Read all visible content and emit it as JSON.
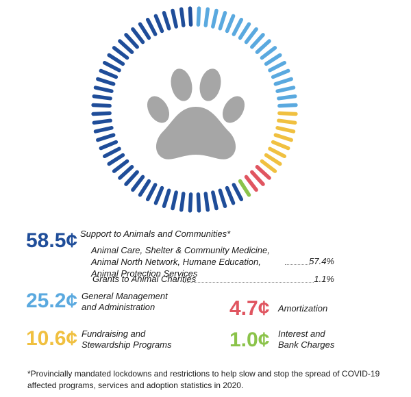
{
  "chart_data": {
    "type": "pie",
    "unit": "¢",
    "segments": [
      {
        "value": "58.5¢",
        "amount": 58.5,
        "label": "Support to Animals and Communities*",
        "color": "#1f4d99"
      },
      {
        "value": "25.2¢",
        "amount": 25.2,
        "label": "General Management and Administration",
        "color": "#5aa9df"
      },
      {
        "value": "10.6¢",
        "amount": 10.6,
        "label": "Fundraising and Stewardship Programs",
        "color": "#f0c040"
      },
      {
        "value": "4.7¢",
        "amount": 4.7,
        "label": "Amortization",
        "color": "#e05560"
      },
      {
        "value": "1.0¢",
        "amount": 1.0,
        "label": "Interest and Bank Charges",
        "color": "#8bc34a"
      }
    ],
    "sub_items": [
      {
        "label": "Animal Care, Shelter & Community Medicine, Animal North Network, Humane Education, Animal Protection Services",
        "value": "57.4%"
      },
      {
        "label": "Grants to Animal Charities",
        "value": "1.1%"
      }
    ],
    "footnote": "*Provincially mandated lockdowns and restrictions to help slow and stop the spread of COVID-19 affected programs, services and adoption statistics in 2020."
  },
  "colors": {
    "paw": "#a6a6a6"
  },
  "icons": {
    "center": "paw-icon"
  }
}
